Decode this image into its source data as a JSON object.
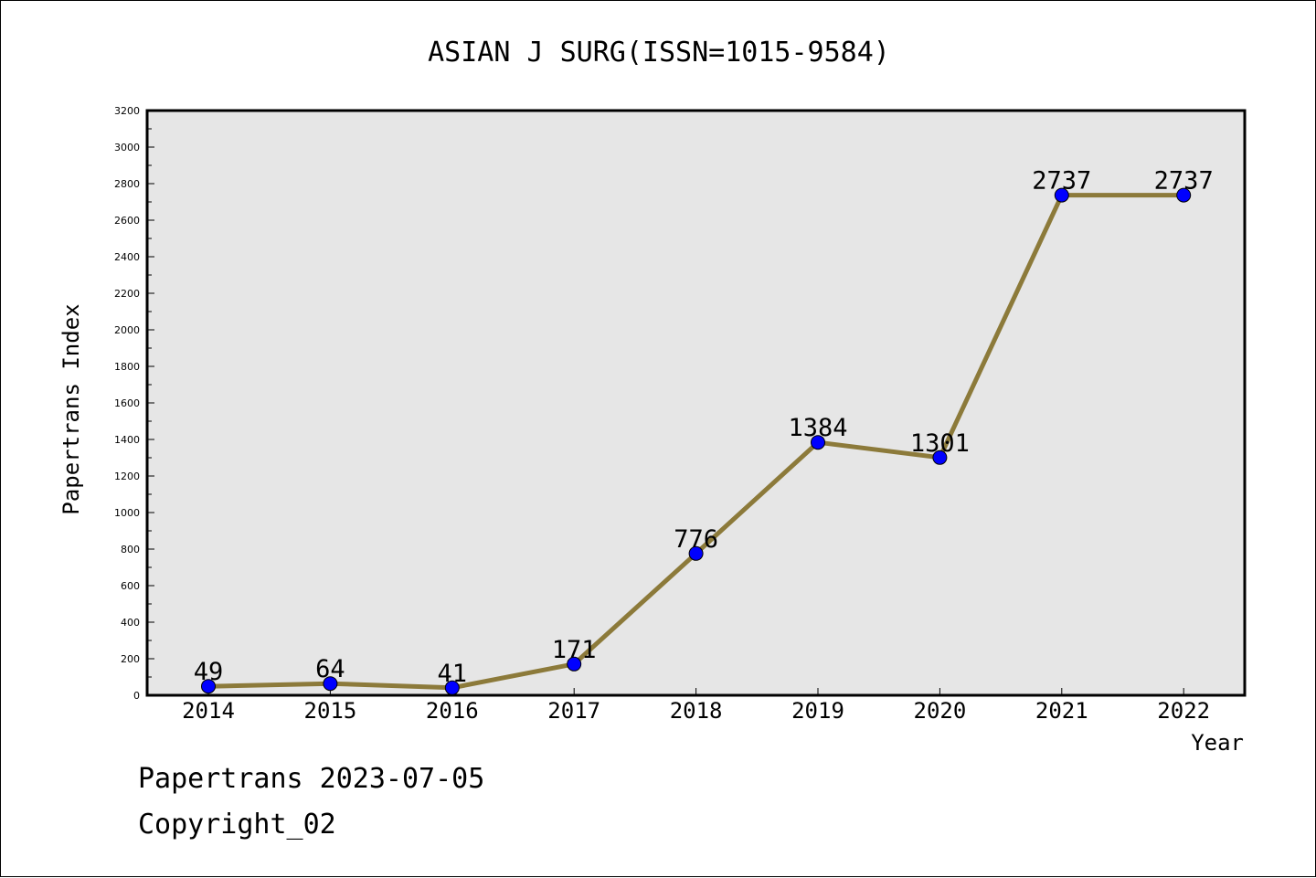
{
  "chart_data": {
    "type": "line",
    "title": "ASIAN J SURG(ISSN=1015-9584)",
    "xlabel": "Year",
    "ylabel": "Papertrans Index",
    "categories": [
      "2014",
      "2015",
      "2016",
      "2017",
      "2018",
      "2019",
      "2020",
      "2021",
      "2022"
    ],
    "series": [
      {
        "values": [
          49,
          64,
          41,
          171,
          776,
          1384,
          1301,
          2737,
          2737
        ]
      }
    ],
    "ylim": [
      0,
      3200
    ],
    "yticks": [
      0,
      200,
      400,
      600,
      800,
      1000,
      1200,
      1400,
      1600,
      1800,
      2000,
      2200,
      2400,
      2600,
      2800,
      3000,
      3200
    ],
    "grid": false,
    "colors": {
      "line": "#8C7A3A",
      "marker": "#0000FF",
      "plot_bg": "#E6E6E6"
    }
  },
  "footer": {
    "line1": "Papertrans 2023-07-05",
    "line2": "Copyright_02"
  }
}
